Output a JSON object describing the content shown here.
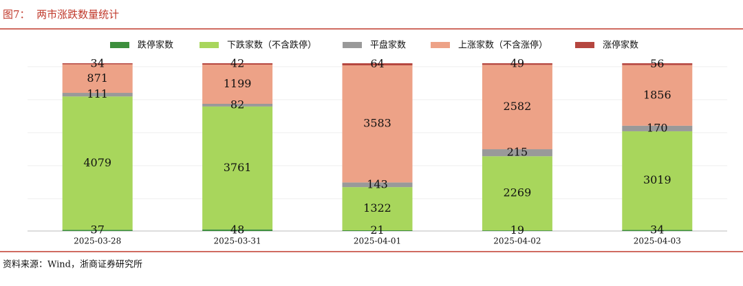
{
  "chart_data": {
    "type": "bar",
    "stacking": "percent",
    "title": "图7：  两市涨跌数量统计",
    "source": "资料来源：Wind，浙商证券研究所",
    "categories": [
      "2025-03-28",
      "2025-03-31",
      "2025-04-01",
      "2025-04-02",
      "2025-04-03"
    ],
    "series": [
      {
        "name": "跌停家数",
        "color": "#3d8f3d",
        "values": [
          37,
          48,
          21,
          19,
          34
        ]
      },
      {
        "name": "下跌家数（不含跌停）",
        "color": "#a8d65c",
        "values": [
          4079,
          3761,
          1322,
          2269,
          3019
        ]
      },
      {
        "name": "平盘家数",
        "color": "#999999",
        "values": [
          111,
          82,
          143,
          215,
          170
        ]
      },
      {
        "name": "上涨家数（不含涨停）",
        "color": "#eda287",
        "values": [
          871,
          1199,
          3583,
          2582,
          1856
        ]
      },
      {
        "name": "涨停家数",
        "color": "#b5463f",
        "values": [
          34,
          42,
          64,
          49,
          56
        ]
      }
    ],
    "legend": "top"
  }
}
